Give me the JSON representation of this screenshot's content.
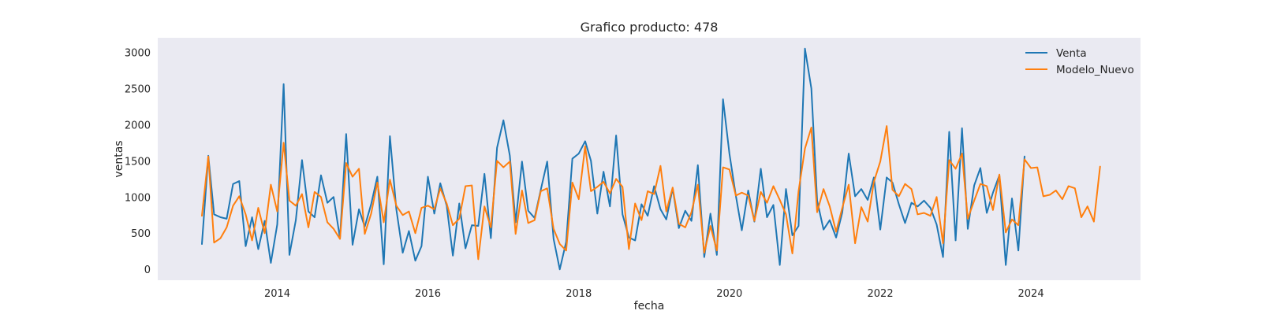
{
  "chart_data": {
    "type": "line",
    "title": "Grafico producto: 478",
    "xlabel": "fecha",
    "ylabel": "ventas",
    "x_axis_type": "date",
    "xlim": [
      "2012-06-01",
      "2025-06-15"
    ],
    "ylim": [
      -150,
      3200
    ],
    "x_ticks": [
      {
        "value": "2014-01-01",
        "label": "2014"
      },
      {
        "value": "2016-01-01",
        "label": "2016"
      },
      {
        "value": "2018-01-01",
        "label": "2018"
      },
      {
        "value": "2020-01-01",
        "label": "2020"
      },
      {
        "value": "2022-01-01",
        "label": "2022"
      },
      {
        "value": "2024-01-01",
        "label": "2024"
      }
    ],
    "y_ticks": [
      0,
      500,
      1000,
      1500,
      2000,
      2500,
      3000
    ],
    "grid": false,
    "legend_position": "top-right",
    "background_color": "#eaeaf2",
    "series": [
      {
        "name": "Venta",
        "color": "#1f77b4",
        "x": [
          "2013-01",
          "2013-02",
          "2013-03",
          "2013-04",
          "2013-05",
          "2013-06",
          "2013-07",
          "2013-08",
          "2013-09",
          "2013-10",
          "2013-11",
          "2013-12",
          "2014-01",
          "2014-02",
          "2014-03",
          "2014-04",
          "2014-05",
          "2014-06",
          "2014-07",
          "2014-08",
          "2014-09",
          "2014-10",
          "2014-11",
          "2014-12",
          "2015-01",
          "2015-02",
          "2015-03",
          "2015-04",
          "2015-05",
          "2015-06",
          "2015-07",
          "2015-08",
          "2015-09",
          "2015-10",
          "2015-11",
          "2015-12",
          "2016-01",
          "2016-02",
          "2016-03",
          "2016-04",
          "2016-05",
          "2016-06",
          "2016-07",
          "2016-08",
          "2016-09",
          "2016-10",
          "2016-11",
          "2016-12",
          "2017-01",
          "2017-02",
          "2017-03",
          "2017-04",
          "2017-05",
          "2017-06",
          "2017-07",
          "2017-08",
          "2017-09",
          "2017-10",
          "2017-11",
          "2017-12",
          "2018-01",
          "2018-02",
          "2018-03",
          "2018-04",
          "2018-05",
          "2018-06",
          "2018-07",
          "2018-08",
          "2018-09",
          "2018-10",
          "2018-11",
          "2018-12",
          "2019-01",
          "2019-02",
          "2019-03",
          "2019-04",
          "2019-05",
          "2019-06",
          "2019-07",
          "2019-08",
          "2019-09",
          "2019-10",
          "2019-11",
          "2019-12",
          "2020-01",
          "2020-02",
          "2020-03",
          "2020-04",
          "2020-05",
          "2020-06",
          "2020-07",
          "2020-08",
          "2020-09",
          "2020-10",
          "2020-11",
          "2020-12",
          "2021-01",
          "2021-02",
          "2021-03",
          "2021-04",
          "2021-05",
          "2021-06",
          "2021-07",
          "2021-08",
          "2021-09",
          "2021-10",
          "2021-11",
          "2021-12",
          "2022-01",
          "2022-02",
          "2022-03",
          "2022-04",
          "2022-05",
          "2022-06",
          "2022-07",
          "2022-08",
          "2022-09",
          "2022-10",
          "2022-11",
          "2022-12",
          "2023-01",
          "2023-02",
          "2023-03",
          "2023-04",
          "2023-05",
          "2023-06",
          "2023-07",
          "2023-08",
          "2023-09",
          "2023-10",
          "2023-11",
          "2023-12"
        ],
        "y": [
          350,
          1570,
          760,
          720,
          700,
          1180,
          1220,
          320,
          720,
          280,
          670,
          90,
          620,
          2560,
          200,
          680,
          1510,
          800,
          720,
          1300,
          920,
          1000,
          430,
          1870,
          340,
          830,
          590,
          900,
          1280,
          70,
          1840,
          830,
          230,
          530,
          120,
          320,
          1280,
          770,
          1190,
          880,
          190,
          910,
          290,
          610,
          600,
          1320,
          430,
          1680,
          2060,
          1570,
          650,
          1490,
          810,
          710,
          1100,
          1490,
          420,
          0,
          380,
          1530,
          1600,
          1770,
          1500,
          770,
          1350,
          870,
          1850,
          760,
          440,
          400,
          900,
          740,
          1150,
          830,
          690,
          1120,
          570,
          810,
          670,
          1440,
          170,
          770,
          200,
          2350,
          1600,
          1020,
          540,
          1090,
          660,
          1390,
          720,
          890,
          60,
          1110,
          470,
          600,
          3050,
          2500,
          950,
          550,
          680,
          440,
          790,
          1600,
          1010,
          1110,
          960,
          1270,
          550,
          1270,
          1200,
          900,
          640,
          920,
          870,
          950,
          850,
          620,
          170,
          1900,
          400,
          1950,
          560,
          1160,
          1400,
          780,
          1060,
          1300,
          60,
          980,
          260,
          1560
        ]
      },
      {
        "name": "Modelo_Nuevo",
        "color": "#ff7f0e",
        "x": [
          "2013-01",
          "2013-02",
          "2013-03",
          "2013-04",
          "2013-05",
          "2013-06",
          "2013-07",
          "2013-08",
          "2013-09",
          "2013-10",
          "2013-11",
          "2013-12",
          "2014-01",
          "2014-02",
          "2014-03",
          "2014-04",
          "2014-05",
          "2014-06",
          "2014-07",
          "2014-08",
          "2014-09",
          "2014-10",
          "2014-11",
          "2014-12",
          "2015-01",
          "2015-02",
          "2015-03",
          "2015-04",
          "2015-05",
          "2015-06",
          "2015-07",
          "2015-08",
          "2015-09",
          "2015-10",
          "2015-11",
          "2015-12",
          "2016-01",
          "2016-02",
          "2016-03",
          "2016-04",
          "2016-05",
          "2016-06",
          "2016-07",
          "2016-08",
          "2016-09",
          "2016-10",
          "2016-11",
          "2016-12",
          "2017-01",
          "2017-02",
          "2017-03",
          "2017-04",
          "2017-05",
          "2017-06",
          "2017-07",
          "2017-08",
          "2017-09",
          "2017-10",
          "2017-11",
          "2017-12",
          "2018-01",
          "2018-02",
          "2018-03",
          "2018-04",
          "2018-05",
          "2018-06",
          "2018-07",
          "2018-08",
          "2018-09",
          "2018-10",
          "2018-11",
          "2018-12",
          "2019-01",
          "2019-02",
          "2019-03",
          "2019-04",
          "2019-05",
          "2019-06",
          "2019-07",
          "2019-08",
          "2019-09",
          "2019-10",
          "2019-11",
          "2019-12",
          "2020-01",
          "2020-02",
          "2020-03",
          "2020-04",
          "2020-05",
          "2020-06",
          "2020-07",
          "2020-08",
          "2020-09",
          "2020-10",
          "2020-11",
          "2020-12",
          "2021-01",
          "2021-02",
          "2021-03",
          "2021-04",
          "2021-05",
          "2021-06",
          "2021-07",
          "2021-08",
          "2021-09",
          "2021-10",
          "2021-11",
          "2021-12",
          "2022-01",
          "2022-02",
          "2022-03",
          "2022-04",
          "2022-05",
          "2022-06",
          "2022-07",
          "2022-08",
          "2022-09",
          "2022-10",
          "2022-11",
          "2022-12",
          "2023-01",
          "2023-02",
          "2023-03",
          "2023-04",
          "2023-05",
          "2023-06",
          "2023-07",
          "2023-08",
          "2023-09",
          "2023-10",
          "2023-11",
          "2023-12",
          "2024-01",
          "2024-02",
          "2024-03",
          "2024-04",
          "2024-05",
          "2024-06",
          "2024-07",
          "2024-08",
          "2024-09",
          "2024-10",
          "2024-11",
          "2024-12"
        ],
        "y": [
          740,
          1560,
          370,
          430,
          580,
          880,
          1010,
          760,
          400,
          850,
          500,
          1170,
          800,
          1750,
          950,
          880,
          1040,
          580,
          1070,
          1000,
          650,
          560,
          420,
          1470,
          1280,
          1390,
          490,
          770,
          1200,
          650,
          1240,
          880,
          750,
          800,
          500,
          850,
          880,
          830,
          1120,
          910,
          610,
          700,
          1150,
          1160,
          140,
          870,
          580,
          1500,
          1410,
          1490,
          490,
          1090,
          640,
          680,
          1080,
          1120,
          560,
          350,
          260,
          1200,
          970,
          1700,
          1080,
          1140,
          1210,
          1050,
          1250,
          1140,
          280,
          910,
          680,
          1080,
          1040,
          1430,
          800,
          1130,
          630,
          580,
          790,
          1170,
          230,
          600,
          260,
          1410,
          1380,
          1020,
          1060,
          1020,
          670,
          1070,
          920,
          1150,
          960,
          760,
          220,
          1080,
          1670,
          1960,
          790,
          1110,
          870,
          520,
          850,
          1170,
          360,
          860,
          660,
          1210,
          1490,
          1980,
          1100,
          1010,
          1180,
          1110,
          760,
          780,
          740,
          1000,
          360,
          1510,
          1390,
          1600,
          700,
          950,
          1180,
          1150,
          820,
          1310,
          510,
          690,
          610,
          1520,
          1400,
          1410,
          1010,
          1030,
          1090,
          970,
          1150,
          1120,
          720,
          870,
          660,
          1420
        ]
      }
    ]
  }
}
